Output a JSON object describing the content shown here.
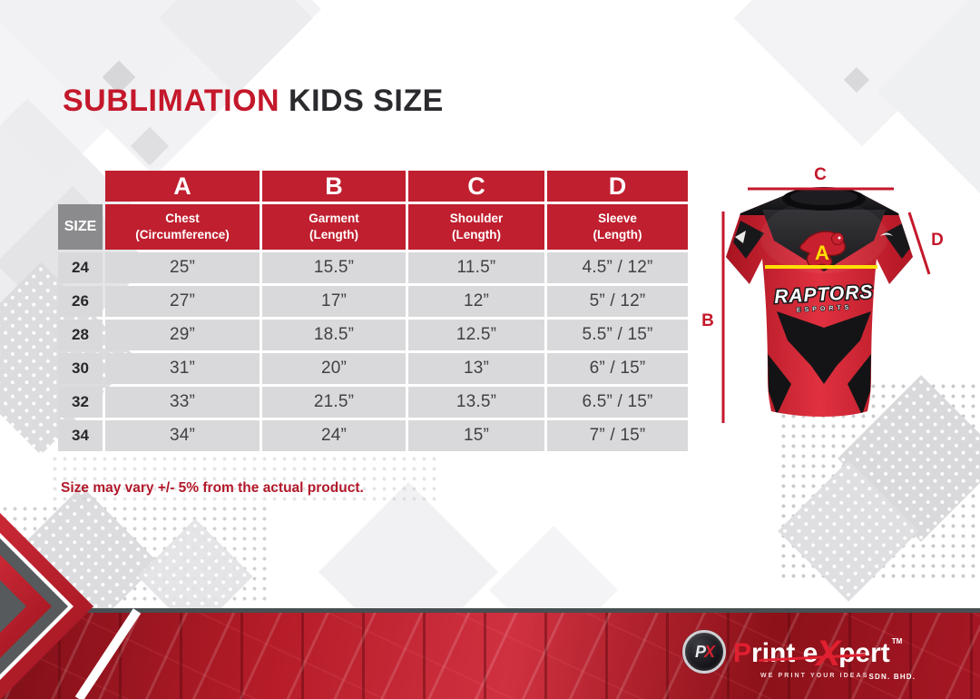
{
  "title": {
    "accent": "SUBLIMATION",
    "rest": " KIDS SIZE"
  },
  "table": {
    "corner_label": "SIZE",
    "letters": [
      "A",
      "B",
      "C",
      "D"
    ],
    "subheaders": [
      {
        "line1": "Chest",
        "line2": "(Circumference)"
      },
      {
        "line1": "Garment",
        "line2": "(Length)"
      },
      {
        "line1": "Shoulder",
        "line2": "(Length)"
      },
      {
        "line1": "Sleeve",
        "line2": "(Length)"
      }
    ],
    "rows": [
      {
        "size": "24",
        "values": [
          "25”",
          "15.5”",
          "11.5”",
          "4.5” / 12”"
        ]
      },
      {
        "size": "26",
        "values": [
          "27”",
          "17”",
          "12”",
          "5” / 12”"
        ]
      },
      {
        "size": "28",
        "values": [
          "29”",
          "18.5”",
          "12.5”",
          "5.5” / 15”"
        ]
      },
      {
        "size": "30",
        "values": [
          "31”",
          "20”",
          "13”",
          "6” / 15”"
        ]
      },
      {
        "size": "32",
        "values": [
          "33”",
          "21.5”",
          "13.5”",
          "6.5” / 15”"
        ]
      },
      {
        "size": "34",
        "values": [
          "34”",
          "24”",
          "15”",
          "7” / 15”"
        ]
      }
    ]
  },
  "note": "Size may vary +/- 5% from the actual product.",
  "diagram": {
    "label_a": "A",
    "label_b": "B",
    "label_c": "C",
    "label_d": "D",
    "shirt_team": "RAPTORS",
    "shirt_sub": "ESPORTS"
  },
  "footer": {
    "monogram_p": "P",
    "monogram_x": "X",
    "name_p": "P",
    "name_rint": "rint e",
    "name_x": "X",
    "name_pert": "pert",
    "tm": "TM",
    "tagline": "WE PRINT YOUR IDEAS",
    "entity": "SDN. BHD."
  },
  "colors": {
    "accent_red": "#c4182b",
    "header_red": "#c01f2f",
    "size_gray": "#8b8b8e",
    "cell_gray": "#d9d9db",
    "ink": "#2b2b2f",
    "note_red": "#b2182a",
    "annotation_yellow": "#ffe000"
  }
}
